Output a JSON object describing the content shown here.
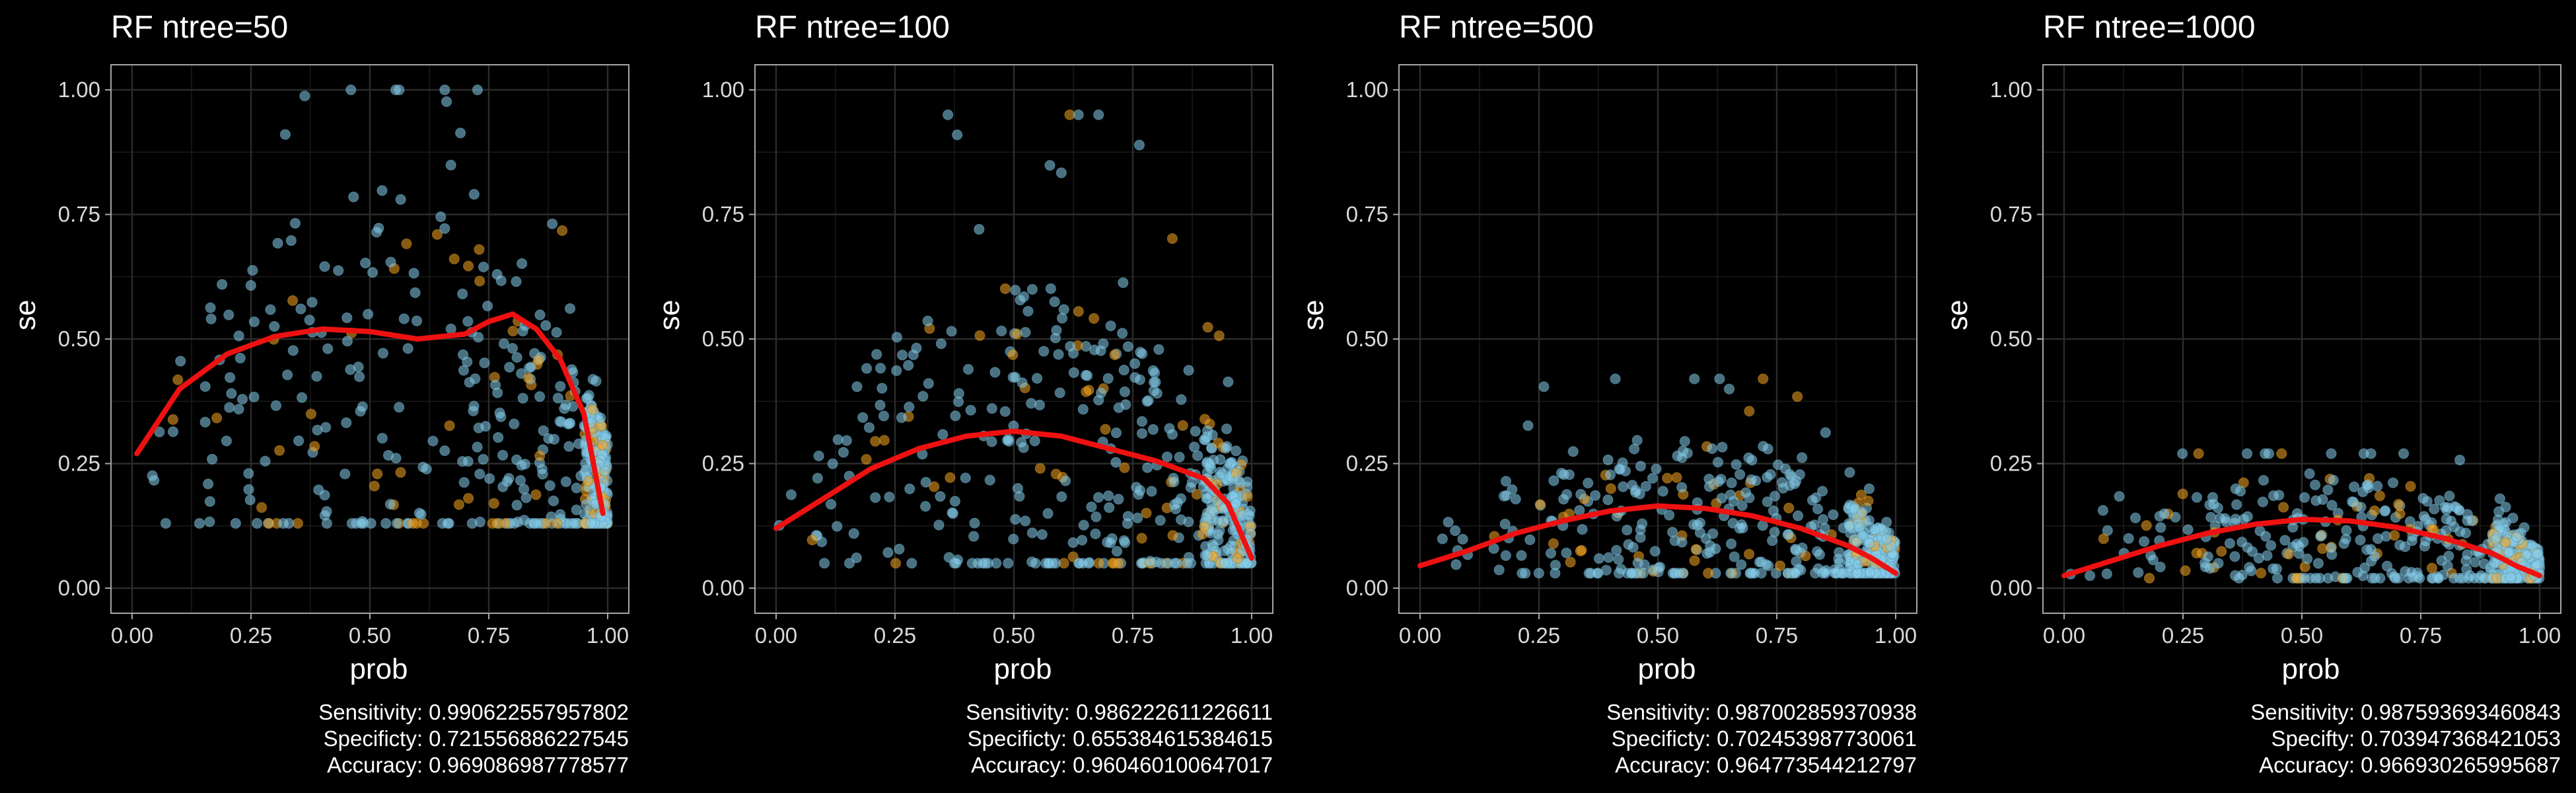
{
  "colors": {
    "background": "#000000",
    "grid": "#2b2b2b",
    "panel_border": "#a6a6a6",
    "point_blue": "#87ceeb",
    "point_orange": "#f5a623",
    "smooth_line": "#ee1111"
  },
  "chart_data": [
    {
      "type": "scatter",
      "title": "RF ntree=50",
      "xlabel": "prob",
      "ylabel": "se",
      "xlim": [
        0,
        1
      ],
      "ylim": [
        0,
        1
      ],
      "x_ticks": [
        "0.00",
        "0.25",
        "0.50",
        "0.75",
        "1.00"
      ],
      "y_ticks": [
        "0.00",
        "0.25",
        "0.50",
        "0.75",
        "1.00"
      ],
      "grid": true,
      "legend": "none",
      "smooth_curve": {
        "x": [
          0.01,
          0.1,
          0.2,
          0.3,
          0.4,
          0.5,
          0.6,
          0.7,
          0.75,
          0.8,
          0.85,
          0.9,
          0.95,
          0.99
        ],
        "y": [
          0.27,
          0.4,
          0.47,
          0.505,
          0.52,
          0.515,
          0.5,
          0.51,
          0.535,
          0.55,
          0.52,
          0.46,
          0.35,
          0.15
        ]
      },
      "point_cloud": {
        "shape": "arch",
        "base": 0.13,
        "peak": 1.0,
        "spread": 0.5,
        "edge_cluster": 0.95
      },
      "stats": {
        "sensitivity": "Sensitivity: 0.990622557957802",
        "specificity": "Specificty: 0.721556886227545",
        "accuracy": "Accuracy: 0.969086987778577"
      }
    },
    {
      "type": "scatter",
      "title": "RF ntree=100",
      "xlabel": "prob",
      "ylabel": "se",
      "xlim": [
        0,
        1
      ],
      "ylim": [
        0,
        1
      ],
      "x_ticks": [
        "0.00",
        "0.25",
        "0.50",
        "0.75",
        "1.00"
      ],
      "y_ticks": [
        "0.00",
        "0.25",
        "0.50",
        "0.75",
        "1.00"
      ],
      "grid": true,
      "legend": "none",
      "smooth_curve": {
        "x": [
          0.0,
          0.1,
          0.2,
          0.3,
          0.4,
          0.5,
          0.6,
          0.7,
          0.8,
          0.9,
          0.95,
          1.0
        ],
        "y": [
          0.12,
          0.18,
          0.24,
          0.28,
          0.305,
          0.315,
          0.305,
          0.28,
          0.255,
          0.22,
          0.17,
          0.06
        ]
      },
      "point_cloud": {
        "shape": "arch",
        "base": 0.05,
        "peak": 0.95,
        "spread": 0.42,
        "edge_cluster": 0.9
      },
      "stats": {
        "sensitivity": "Sensitivity: 0.986222611226611",
        "specificity": "Specificty: 0.655384615384615",
        "accuracy": "Accuracy: 0.960460100647017"
      }
    },
    {
      "type": "scatter",
      "title": "RF ntree=500",
      "xlabel": "prob",
      "ylabel": "se",
      "xlim": [
        0,
        1
      ],
      "ylim": [
        0,
        1
      ],
      "x_ticks": [
        "0.00",
        "0.25",
        "0.50",
        "0.75",
        "1.00"
      ],
      "y_ticks": [
        "0.00",
        "0.25",
        "0.50",
        "0.75",
        "1.00"
      ],
      "grid": true,
      "legend": "none",
      "smooth_curve": {
        "x": [
          0.0,
          0.1,
          0.2,
          0.3,
          0.4,
          0.5,
          0.6,
          0.7,
          0.8,
          0.9,
          0.95,
          1.0
        ],
        "y": [
          0.045,
          0.075,
          0.11,
          0.135,
          0.155,
          0.165,
          0.16,
          0.145,
          0.12,
          0.085,
          0.06,
          0.03
        ]
      },
      "point_cloud": {
        "shape": "arch",
        "base": 0.03,
        "peak": 0.42,
        "spread": 0.2,
        "edge_cluster": 0.9
      },
      "stats": {
        "sensitivity": "Sensitivity: 0.987002859370938",
        "specificity": "Specificty: 0.702453987730061",
        "accuracy": "Accuracy: 0.964773544212797"
      }
    },
    {
      "type": "scatter",
      "title": "RF ntree=1000",
      "xlabel": "prob",
      "ylabel": "se",
      "xlim": [
        0,
        1
      ],
      "ylim": [
        0,
        1
      ],
      "x_ticks": [
        "0.00",
        "0.25",
        "0.50",
        "0.75",
        "1.00"
      ],
      "y_ticks": [
        "0.00",
        "0.25",
        "0.50",
        "0.75",
        "1.00"
      ],
      "grid": true,
      "legend": "none",
      "smooth_curve": {
        "x": [
          0.0,
          0.1,
          0.2,
          0.3,
          0.4,
          0.5,
          0.6,
          0.7,
          0.8,
          0.9,
          0.95,
          1.0
        ],
        "y": [
          0.025,
          0.055,
          0.085,
          0.11,
          0.128,
          0.138,
          0.135,
          0.122,
          0.1,
          0.07,
          0.045,
          0.025
        ]
      },
      "point_cloud": {
        "shape": "arch",
        "base": 0.02,
        "peak": 0.27,
        "spread": 0.16,
        "edge_cluster": 0.9
      },
      "stats": {
        "sensitivity": "Sensitivity: 0.987593693460843",
        "specificity": "Specifty: 0.703947368421053",
        "accuracy": "Accuracy: 0.966930265995687"
      }
    }
  ]
}
